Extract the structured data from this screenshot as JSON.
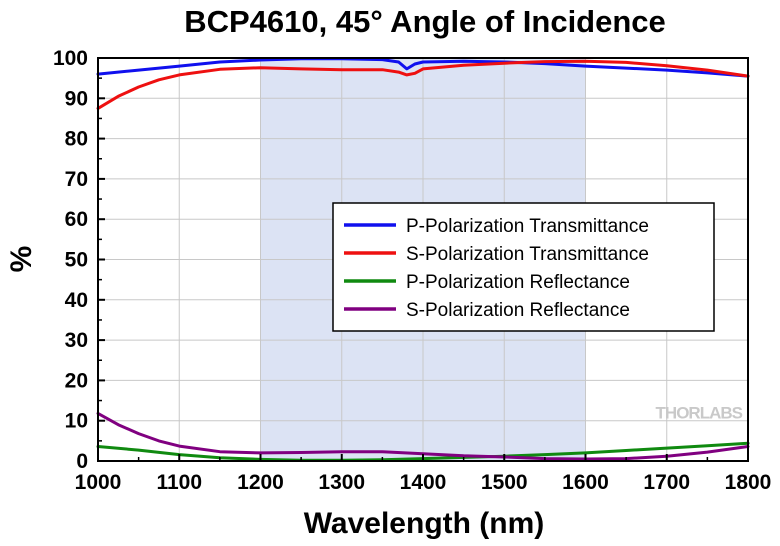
{
  "chart_data": {
    "type": "line",
    "title": "BCP4610, 45° Angle of Incidence",
    "xlabel": "Wavelength (nm)",
    "ylabel": "%",
    "xlim": [
      1000,
      1800
    ],
    "ylim": [
      0,
      100
    ],
    "xticks": [
      1000,
      1100,
      1200,
      1300,
      1400,
      1500,
      1600,
      1700,
      1800
    ],
    "yticks": [
      0,
      10,
      20,
      30,
      40,
      50,
      60,
      70,
      80,
      90,
      100
    ],
    "grid": true,
    "legend": "center-right",
    "highlight_band": {
      "x": [
        1200,
        1600
      ],
      "color": "#dce3f4"
    },
    "watermark": "THORLABS",
    "series": [
      {
        "name": "P-Polarization Transmittance",
        "color": "#1010ee",
        "x": [
          1000,
          1050,
          1100,
          1150,
          1200,
          1250,
          1300,
          1350,
          1370,
          1380,
          1390,
          1400,
          1450,
          1500,
          1550,
          1600,
          1650,
          1700,
          1750,
          1800
        ],
        "y": [
          96,
          97,
          98,
          99,
          99.5,
          99.8,
          99.8,
          99.6,
          99,
          97.3,
          98.5,
          99,
          99.2,
          99,
          98.6,
          98,
          97.5,
          97,
          96.3,
          95.5
        ]
      },
      {
        "name": "S-Polarization Transmittance",
        "color": "#ee1010",
        "x": [
          1000,
          1025,
          1050,
          1075,
          1100,
          1150,
          1200,
          1250,
          1300,
          1350,
          1370,
          1380,
          1390,
          1400,
          1450,
          1500,
          1550,
          1600,
          1650,
          1700,
          1750,
          1800
        ],
        "y": [
          87.5,
          90.5,
          92.8,
          94.6,
          95.8,
          97.2,
          97.6,
          97.3,
          97.1,
          97.1,
          96.5,
          95.8,
          96.2,
          97.3,
          98.2,
          98.7,
          99.1,
          99.2,
          98.9,
          98.1,
          97,
          95.5
        ]
      },
      {
        "name": "P-Polarization Reflectance",
        "color": "#108a10",
        "x": [
          1000,
          1050,
          1100,
          1150,
          1200,
          1250,
          1300,
          1350,
          1400,
          1450,
          1500,
          1550,
          1600,
          1650,
          1700,
          1750,
          1800
        ],
        "y": [
          3.6,
          2.7,
          1.6,
          0.8,
          0.4,
          0.2,
          0.2,
          0.3,
          0.6,
          0.9,
          1.2,
          1.6,
          2,
          2.6,
          3.2,
          3.8,
          4.4
        ]
      },
      {
        "name": "S-Polarization Reflectance",
        "color": "#800080",
        "x": [
          1000,
          1025,
          1050,
          1075,
          1100,
          1150,
          1200,
          1250,
          1300,
          1350,
          1400,
          1450,
          1500,
          1550,
          1600,
          1650,
          1700,
          1750,
          1800
        ],
        "y": [
          11.8,
          9,
          6.8,
          5,
          3.7,
          2.3,
          2,
          2.1,
          2.3,
          2.3,
          1.8,
          1.3,
          1,
          0.6,
          0.5,
          0.6,
          1.2,
          2.2,
          3.6
        ]
      }
    ]
  }
}
